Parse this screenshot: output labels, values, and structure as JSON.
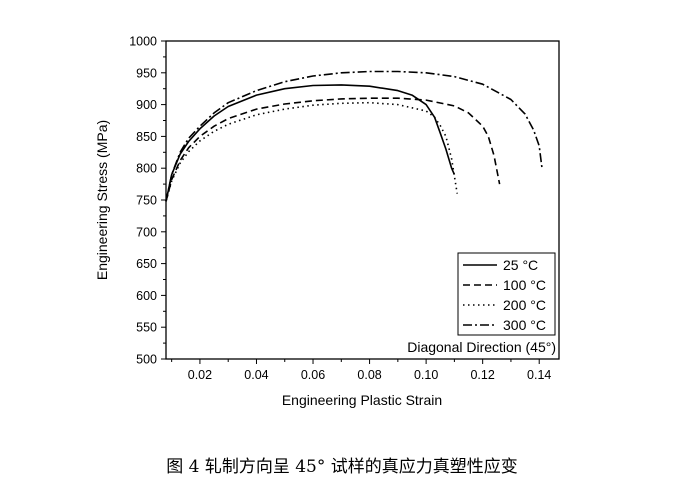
{
  "caption": "图 4 轧制方向呈 45° 试样的真应力真塑性应变",
  "chart_data": {
    "type": "line",
    "xlabel": "Engineering Plastic Strain",
    "ylabel": "Engineering Stress (MPa)",
    "xlim": [
      0.008,
      0.147
    ],
    "ylim": [
      500,
      1000
    ],
    "xticks": [
      0.02,
      0.04,
      0.06,
      0.08,
      0.1,
      0.12,
      0.14
    ],
    "xtick_labels": [
      "0.02",
      "0.04",
      "0.06",
      "0.08",
      "0.10",
      "0.12",
      "0.14"
    ],
    "yticks": [
      500,
      550,
      600,
      650,
      700,
      750,
      800,
      850,
      900,
      950,
      1000
    ],
    "ytick_labels": [
      "500",
      "550",
      "600",
      "650",
      "700",
      "750",
      "800",
      "850",
      "900",
      "950",
      "1000"
    ],
    "annotation": "Diagonal Direction (45°)",
    "legend_position": "bottom-right",
    "series": [
      {
        "name": "25 °C",
        "dash": "solid",
        "x": [
          0.008,
          0.01,
          0.013,
          0.016,
          0.02,
          0.025,
          0.03,
          0.04,
          0.05,
          0.06,
          0.07,
          0.08,
          0.09,
          0.095,
          0.1,
          0.103,
          0.105,
          0.107,
          0.109,
          0.11
        ],
        "y": [
          748,
          790,
          822,
          842,
          862,
          882,
          897,
          915,
          925,
          930,
          931,
          929,
          922,
          915,
          900,
          880,
          855,
          830,
          800,
          790
        ]
      },
      {
        "name": "100 °C",
        "dash": "dash",
        "x": [
          0.008,
          0.01,
          0.013,
          0.016,
          0.02,
          0.025,
          0.03,
          0.04,
          0.05,
          0.06,
          0.07,
          0.08,
          0.09,
          0.1,
          0.11,
          0.115,
          0.12,
          0.122,
          0.124,
          0.126
        ],
        "y": [
          748,
          782,
          812,
          832,
          850,
          866,
          878,
          893,
          901,
          906,
          909,
          910,
          910,
          907,
          898,
          887,
          866,
          850,
          820,
          775
        ]
      },
      {
        "name": "200 °C",
        "dash": "dot",
        "x": [
          0.008,
          0.01,
          0.013,
          0.016,
          0.02,
          0.025,
          0.03,
          0.04,
          0.05,
          0.06,
          0.07,
          0.08,
          0.09,
          0.1,
          0.103,
          0.105,
          0.107,
          0.109,
          0.111
        ],
        "y": [
          748,
          780,
          808,
          826,
          843,
          858,
          869,
          884,
          893,
          899,
          902,
          903,
          900,
          890,
          880,
          867,
          850,
          815,
          760
        ]
      },
      {
        "name": "300 °C",
        "dash": "dashdot",
        "x": [
          0.008,
          0.01,
          0.013,
          0.016,
          0.02,
          0.025,
          0.03,
          0.04,
          0.05,
          0.06,
          0.07,
          0.08,
          0.09,
          0.1,
          0.11,
          0.12,
          0.13,
          0.135,
          0.138,
          0.14,
          0.141
        ],
        "y": [
          748,
          790,
          825,
          847,
          866,
          887,
          903,
          922,
          936,
          945,
          950,
          952,
          952,
          950,
          944,
          932,
          908,
          885,
          860,
          835,
          800
        ]
      }
    ]
  }
}
